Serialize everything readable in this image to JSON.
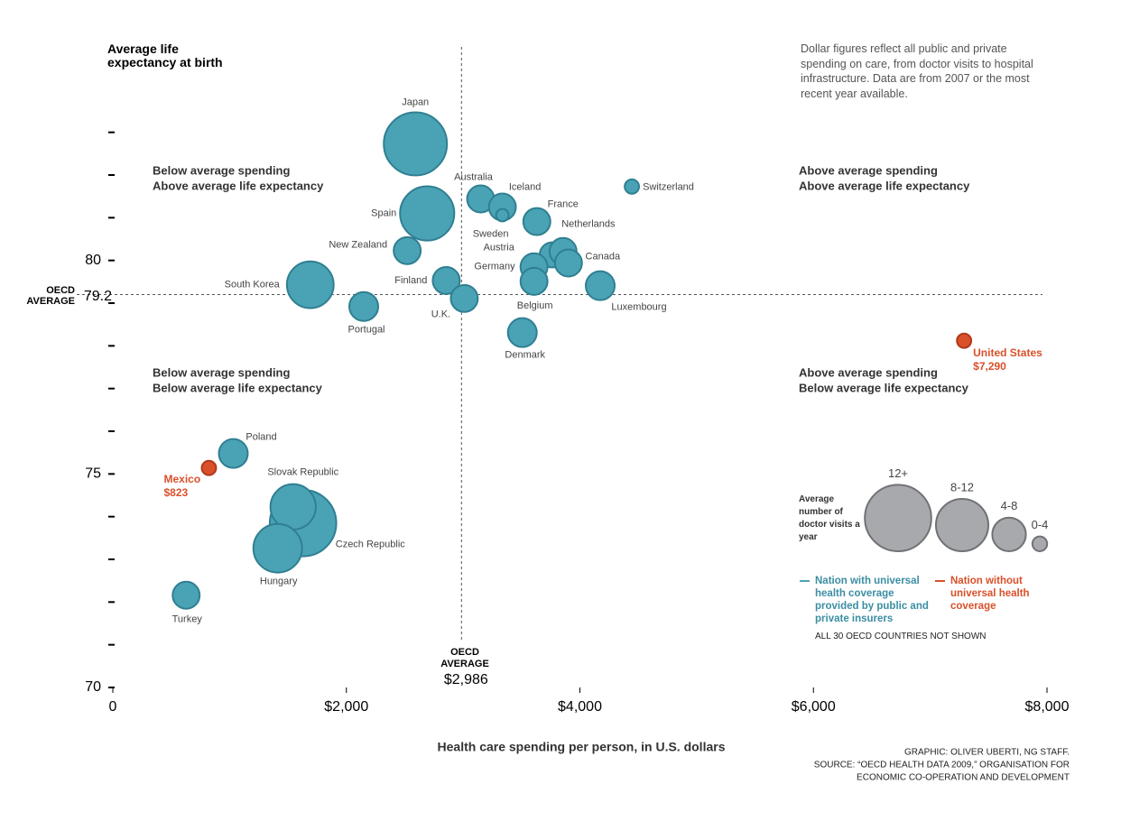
{
  "chart_data": {
    "type": "scatter",
    "y_title": "Average life expectancy at birth",
    "x_title": "Health care spending per person, in U.S. dollars",
    "note": "Dollar figures reflect all public and private spending on care, from doctor visits to hospital infrastructure. Data are from 2007 or the most recent year available.",
    "quadrants": [
      [
        "Below average spending",
        "Above average life expectancy"
      ],
      [
        "Above average spending",
        "Above average life expectancy"
      ],
      [
        "Below average spending",
        "Below average life expectancy"
      ],
      [
        "Above average spending",
        "Below average life expectancy"
      ]
    ],
    "xlim": [
      0,
      8000
    ],
    "ylim": [
      70,
      85
    ],
    "xticks": [
      0,
      {
        "value": 2000,
        "label": "$2,000"
      },
      {
        "value": 4000,
        "label": "$4,000"
      },
      {
        "value": 6000,
        "label": "$6,000"
      },
      {
        "value": 8000,
        "label": "$8,000"
      }
    ],
    "yticks": [
      70,
      75,
      80
    ],
    "minor_yticks": [
      71,
      72,
      73,
      74,
      76,
      77,
      78,
      79,
      81,
      82,
      83
    ],
    "average_x": {
      "name": "OECD AVERAGE",
      "value": 2986,
      "label": "$2,986"
    },
    "average_y": {
      "name": "OECD AVERAGE",
      "value": 79.2
    },
    "series": [
      {
        "name": "Nation with universal health coverage provided by public and private insurers",
        "color": "#4aa3b5",
        "labels": [
          "Czech Republic",
          "Slovak Republic",
          "Japan",
          "Spain",
          "South Korea",
          "Hungary",
          "Australia",
          "Iceland",
          "Sweden",
          "France",
          "Switzerland",
          "New Zealand",
          "Austria",
          "Netherlands",
          "Canada",
          "Germany",
          "Belgium",
          "Finland",
          "U.K.",
          "Luxembourg",
          "Portugal",
          "Denmark",
          "Poland",
          "Turkey"
        ],
        "x": [
          1629,
          1544,
          2591,
          2692,
          1691,
          1412,
          3150,
          3336,
          3336,
          3631,
          4445,
          2521,
          3763,
          3856,
          3902,
          3607,
          3607,
          2855,
          3010,
          4174,
          2149,
          3507,
          1032,
          628
        ],
        "values": [
          73.85,
          74.23,
          82.73,
          81.1,
          79.43,
          73.26,
          81.44,
          81.25,
          81.06,
          80.91,
          81.73,
          80.23,
          80.13,
          80.21,
          79.94,
          79.85,
          79.51,
          79.53,
          79.11,
          79.41,
          78.92,
          78.31,
          75.48,
          72.16
        ],
        "sizes": [
          13,
          8.5,
          12.3,
          10.4,
          8.8,
          9.2,
          4.6,
          4.6,
          1.5,
          4.6,
          1.9,
          4.6,
          4.2,
          4.6,
          4.6,
          4.6,
          4.6,
          4.6,
          4.6,
          5,
          5,
          5,
          5,
          4.6
        ]
      },
      {
        "name": "Nation without universal health coverage",
        "color": "#d9502a",
        "labels": [
          "Mexico",
          "United States"
        ],
        "x": [
          823,
          7290
        ],
        "x_labels": [
          "$823",
          "$7,290"
        ],
        "values": [
          75.14,
          78.12
        ],
        "sizes": [
          1.9,
          1.9
        ]
      }
    ],
    "size_legend": {
      "title": "Average number of doctor visits a year",
      "values": [
        13,
        10,
        6,
        2
      ],
      "labels": [
        "12+",
        "8-12",
        "4-8",
        "0-4"
      ],
      "color": "#a7a9ac"
    },
    "coverage_note": "ALL 30 OECD COUNTRIES NOT SHOWN",
    "credits": [
      "GRAPHIC: OLIVER UBERTI, NG STAFF.",
      "SOURCE: “OECD HEALTH DATA 2009,” ORGANISATION FOR",
      "ECONOMIC CO-OPERATION AND DEVELOPMENT"
    ]
  }
}
